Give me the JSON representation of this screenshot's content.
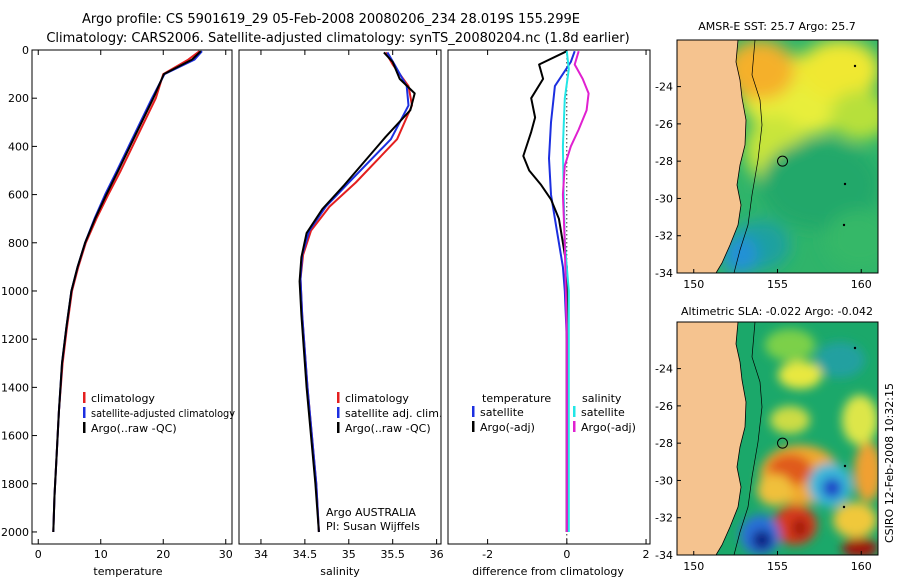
{
  "title_line1": "Argo profile: CS 5901619_29 05-Feb-2008 20080206_234 28.019S 155.299E",
  "title_line2": "Climatology: CARS2006. Satellite-adjusted climatology: synTS_20080204.nc (1.8d earlier)",
  "credit": "CSIRO 12-Feb-2008 10:32:15",
  "colors": {
    "climatology": "#e41f1f",
    "satellite": "#1c2fe0",
    "argo": "#000000",
    "sal_satellite": "#22e6e6",
    "sal_argo": "#e020d0",
    "land": "#f5c38f"
  },
  "chart_data": [
    {
      "type": "line",
      "name": "temperature-profile",
      "xlabel": "temperature",
      "ylabel": "",
      "xlim": [
        -1,
        31
      ],
      "ylim": [
        0,
        2050
      ],
      "y_inverted": true,
      "xticks": [
        0,
        10,
        20,
        30
      ],
      "yticks": [
        0,
        200,
        400,
        600,
        800,
        1000,
        1200,
        1400,
        1600,
        1800,
        2000
      ],
      "legend": [
        "climatology",
        "satellite-adjusted climatology",
        "Argo(..raw -QC)"
      ],
      "series": [
        {
          "name": "climatology",
          "color": "#e41f1f",
          "x": [
            25.8,
            24.0,
            20.0,
            18.8,
            16.0,
            13.2,
            11.2,
            9.3,
            7.6,
            6.4,
            5.4,
            4.6,
            3.9,
            3.3,
            2.9,
            2.6,
            2.4
          ],
          "y": [
            5,
            40,
            100,
            200,
            350,
            500,
            600,
            700,
            800,
            900,
            1000,
            1150,
            1300,
            1500,
            1700,
            1850,
            2000
          ]
        },
        {
          "name": "satellite-adjusted climatology",
          "color": "#1c2fe0",
          "x": [
            26.2,
            25.0,
            20.2,
            18.2,
            15.4,
            12.6,
            10.7,
            9.0,
            7.5,
            6.3,
            5.3,
            4.5,
            3.8,
            3.3,
            2.9,
            2.6,
            2.4
          ],
          "y": [
            5,
            40,
            100,
            200,
            350,
            500,
            600,
            700,
            800,
            900,
            1000,
            1150,
            1300,
            1500,
            1700,
            1850,
            2000
          ]
        },
        {
          "name": "Argo(..raw -QC)",
          "color": "#000000",
          "x": [
            26.0,
            24.6,
            20.1,
            18.4,
            15.6,
            12.8,
            10.9,
            9.1,
            7.5,
            6.3,
            5.3,
            4.5,
            3.8,
            3.3,
            2.9,
            2.6,
            2.4
          ],
          "y": [
            5,
            40,
            100,
            200,
            350,
            500,
            600,
            700,
            800,
            900,
            1000,
            1150,
            1300,
            1500,
            1700,
            1850,
            2000
          ]
        }
      ]
    },
    {
      "type": "line",
      "name": "salinity-profile",
      "xlabel": "salinity",
      "ylabel": "",
      "xlim": [
        33.75,
        36.05
      ],
      "ylim": [
        0,
        2050
      ],
      "y_inverted": true,
      "xticks": [
        34,
        34.5,
        35,
        35.5,
        36
      ],
      "yticks": [],
      "legend": [
        "climatology",
        "satellite adj. clim.",
        "Argo(..raw -QC)"
      ],
      "annotation": [
        "Argo AUSTRALIA",
        "PI: Susan Wijffels"
      ],
      "series": [
        {
          "name": "climatology",
          "color": "#e41f1f",
          "x": [
            35.42,
            35.5,
            35.68,
            35.72,
            35.55,
            35.08,
            34.78,
            34.57,
            34.48,
            34.45,
            34.47,
            34.53,
            34.58,
            34.63,
            34.66
          ],
          "y": [
            10,
            60,
            150,
            230,
            370,
            550,
            650,
            750,
            850,
            950,
            1100,
            1400,
            1600,
            1800,
            2000
          ]
        },
        {
          "name": "satellite adj. clim.",
          "color": "#1c2fe0",
          "x": [
            35.44,
            35.52,
            35.66,
            35.68,
            35.48,
            35.0,
            34.74,
            34.55,
            34.47,
            34.45,
            34.47,
            34.53,
            34.58,
            34.63,
            34.66
          ],
          "y": [
            10,
            60,
            150,
            230,
            370,
            550,
            650,
            750,
            850,
            950,
            1100,
            1400,
            1600,
            1800,
            2000
          ]
        },
        {
          "name": "Argo(..raw -QC)",
          "color": "#000000",
          "x": [
            35.4,
            35.5,
            35.58,
            35.75,
            35.7,
            35.42,
            34.95,
            34.7,
            34.52,
            34.46,
            34.44,
            34.46,
            34.52,
            34.57,
            34.62,
            34.66
          ],
          "y": [
            10,
            50,
            120,
            180,
            250,
            360,
            560,
            660,
            760,
            860,
            960,
            1100,
            1400,
            1600,
            1800,
            2000
          ]
        }
      ]
    },
    {
      "type": "line",
      "name": "difference-profile",
      "xlabel": "difference from climatology",
      "ylabel": "",
      "xlim": [
        -3,
        2.1
      ],
      "ylim": [
        0,
        2050
      ],
      "y_inverted": true,
      "xticks": [
        -2,
        0,
        2
      ],
      "legend_temperature": {
        "heading": "temperature",
        "items": [
          "satellite",
          "Argo(-adj)"
        ]
      },
      "legend_salinity": {
        "heading": "salinity",
        "items": [
          "satellite",
          "Argo(-adj)"
        ]
      },
      "series": [
        {
          "name": "temperature satellite",
          "color": "#1c2fe0",
          "x": [
            0.2,
            0.1,
            -0.3,
            -0.4,
            -0.45,
            -0.4,
            -0.3,
            -0.2,
            -0.1,
            -0.05,
            0,
            0,
            0,
            0
          ],
          "y": [
            5,
            50,
            150,
            300,
            450,
            600,
            700,
            800,
            900,
            1000,
            1200,
            1500,
            1800,
            2000
          ]
        },
        {
          "name": "temperature Argo(-adj)",
          "color": "#000000",
          "x": [
            0,
            -0.7,
            -0.6,
            -0.9,
            -0.8,
            -0.9,
            -1.1,
            -0.95,
            -0.65,
            -0.4,
            -0.2,
            -0.1,
            0,
            0,
            0,
            0,
            0
          ],
          "y": [
            5,
            60,
            120,
            200,
            280,
            340,
            440,
            500,
            560,
            620,
            700,
            800,
            900,
            1100,
            1400,
            1700,
            2000
          ]
        },
        {
          "name": "salinity satellite",
          "color": "#22e6e6",
          "x": [
            0.0,
            0.05,
            -0.05,
            -0.1,
            -0.08,
            -0.05,
            0.05,
            0.05,
            0.05,
            0.05
          ],
          "y": [
            5,
            80,
            200,
            400,
            600,
            800,
            1000,
            1400,
            1800,
            2000
          ]
        },
        {
          "name": "salinity Argo(-adj)",
          "color": "#e020d0",
          "x": [
            0.3,
            0.2,
            0.4,
            0.55,
            0.5,
            0.3,
            0.1,
            -0.05,
            -0.1,
            -0.05,
            0,
            0,
            0
          ],
          "y": [
            5,
            60,
            120,
            180,
            250,
            330,
            400,
            480,
            600,
            800,
            1200,
            1600,
            2000
          ]
        }
      ]
    },
    {
      "type": "heatmap",
      "name": "amsr-sst-map",
      "title": "AMSR-E SST: 25.7 Argo: 25.7",
      "xlim": [
        149,
        161
      ],
      "ylim": [
        -34,
        -21.5
      ],
      "xticks": [
        150,
        155,
        160
      ],
      "yticks": [
        -24,
        -26,
        -28,
        -30,
        -32,
        -34
      ],
      "marker": {
        "lon": 155.3,
        "lat": -28.0
      }
    },
    {
      "type": "heatmap",
      "name": "altimetric-sla-map",
      "title": "Altimetric SLA: -0.022 Argo: -0.042",
      "xlim": [
        149,
        161
      ],
      "ylim": [
        -34,
        -21.5
      ],
      "xticks": [
        150,
        155,
        160
      ],
      "yticks": [
        -24,
        -26,
        -28,
        -30,
        -32,
        -34
      ],
      "marker": {
        "lon": 155.3,
        "lat": -28.0
      }
    }
  ]
}
